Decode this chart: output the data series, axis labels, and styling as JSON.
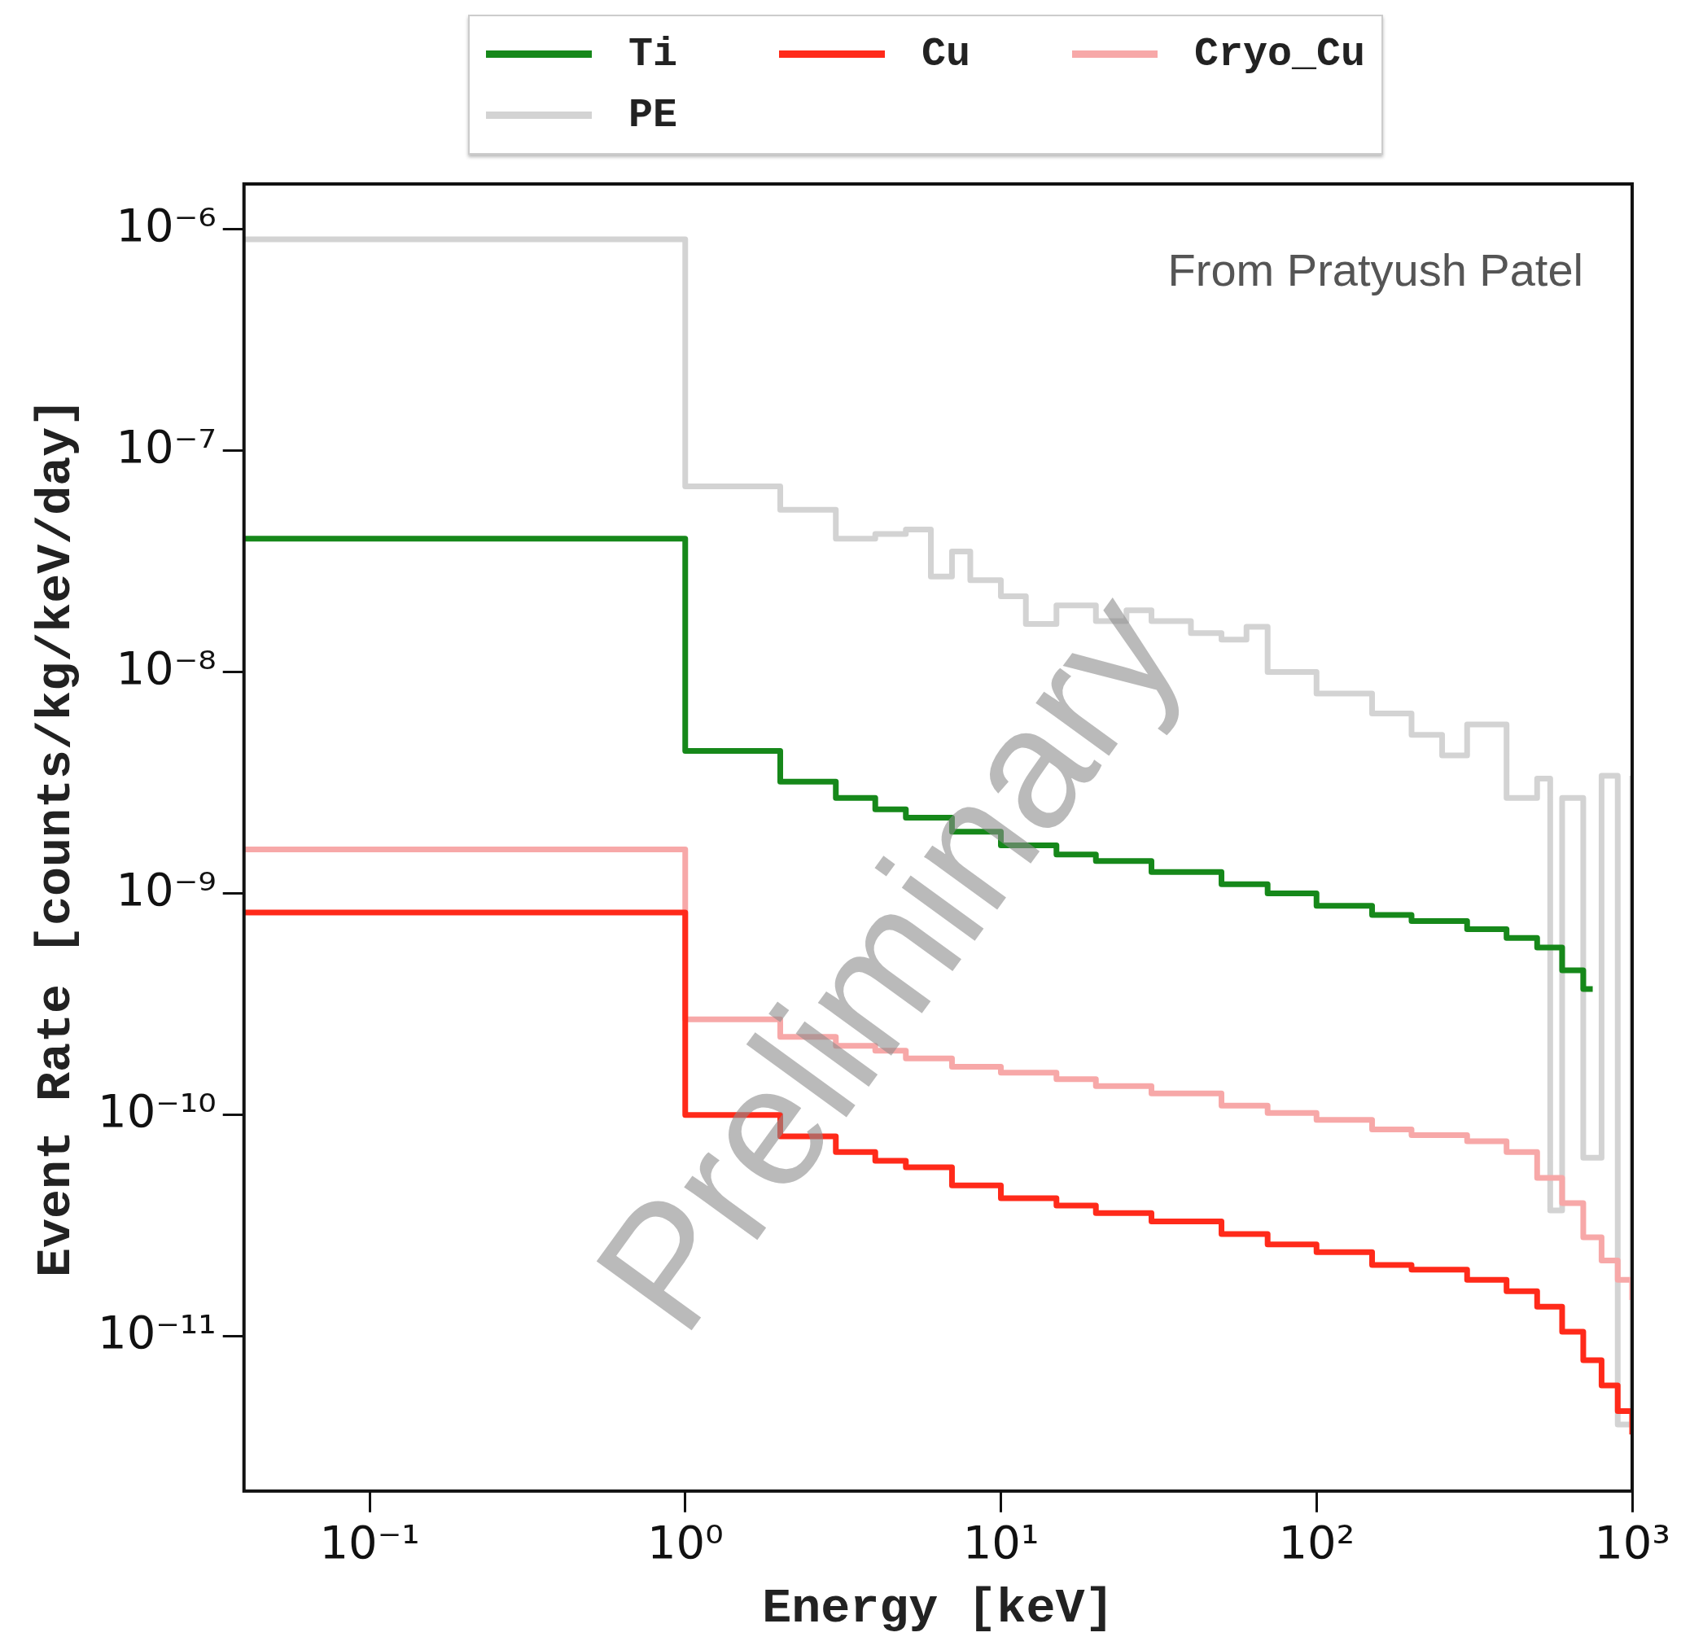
{
  "chart_data": {
    "type": "step",
    "xlabel": "Energy [keV]",
    "ylabel": "Event Rate [counts/kg/keV/day]",
    "log": "xy",
    "grid": false,
    "legend": "top",
    "line_style": "solid",
    "marker": "none",
    "xlim": [
      0.04,
      1000
    ],
    "ylim": [
      2e-12,
      1.6e-06
    ],
    "xticks": [
      {
        "value": 0.1,
        "label": "10⁻¹"
      },
      {
        "value": 1,
        "label": "10⁰"
      },
      {
        "value": 10,
        "label": "10¹"
      },
      {
        "value": 100,
        "label": "10²"
      },
      {
        "value": 1000,
        "label": "10³"
      }
    ],
    "yticks": [
      {
        "value": 1e-11,
        "label": "10⁻¹¹"
      },
      {
        "value": 1e-10,
        "label": "10⁻¹⁰"
      },
      {
        "value": 1e-09,
        "label": "10⁻⁹"
      },
      {
        "value": 1e-08,
        "label": "10⁻⁸"
      },
      {
        "value": 1e-07,
        "label": "10⁻⁷"
      },
      {
        "value": 1e-06,
        "label": "10⁻⁶"
      }
    ],
    "annotations": [
      "From Pratyush Patel",
      "Preliminary"
    ],
    "series": [
      {
        "name": "Ti",
        "color": "#16881a",
        "x": [
          0.04,
          1,
          2,
          3,
          4,
          5,
          7,
          10,
          15,
          20,
          30,
          50,
          70,
          100,
          150,
          200,
          300,
          400,
          500,
          600,
          700,
          750
        ],
        "values": [
          4e-08,
          4.4e-09,
          3.2e-09,
          2.7e-09,
          2.4e-09,
          2.2e-09,
          1.9e-09,
          1.65e-09,
          1.5e-09,
          1.4e-09,
          1.25e-09,
          1.1e-09,
          1e-09,
          8.8e-10,
          8e-10,
          7.5e-10,
          6.9e-10,
          6.3e-10,
          5.7e-10,
          4.5e-10,
          3.7e-10,
          3.7e-10
        ]
      },
      {
        "name": "Cu",
        "color": "#ff2a1a",
        "x": [
          0.04,
          1,
          2,
          3,
          4,
          5,
          7,
          10,
          15,
          20,
          30,
          50,
          70,
          100,
          150,
          200,
          300,
          400,
          500,
          600,
          700,
          800,
          900,
          1000
        ],
        "values": [
          8.2e-10,
          1e-10,
          8e-11,
          6.8e-11,
          6.2e-11,
          5.8e-11,
          4.8e-11,
          4.2e-11,
          3.9e-11,
          3.6e-11,
          3.3e-11,
          2.9e-11,
          2.6e-11,
          2.4e-11,
          2.1e-11,
          2e-11,
          1.8e-11,
          1.6e-11,
          1.36e-11,
          1.05e-11,
          7.8e-12,
          6e-12,
          4.6e-12,
          3.6e-12
        ]
      },
      {
        "name": "Cryo_Cu",
        "color": "#f7a8a8",
        "x": [
          0.04,
          1,
          2,
          3,
          4,
          5,
          7,
          10,
          15,
          20,
          30,
          50,
          70,
          100,
          150,
          200,
          300,
          400,
          500,
          600,
          700,
          800,
          900,
          1000
        ],
        "values": [
          1.58e-09,
          2.7e-10,
          2.25e-10,
          2.05e-10,
          1.95e-10,
          1.8e-10,
          1.65e-10,
          1.55e-10,
          1.45e-10,
          1.35e-10,
          1.25e-10,
          1.1e-10,
          1.02e-10,
          9.5e-11,
          8.6e-11,
          8.1e-11,
          7.6e-11,
          6.8e-11,
          5.2e-11,
          4e-11,
          2.8e-11,
          2.2e-11,
          1.8e-11,
          1.46e-11
        ]
      },
      {
        "name": "PE",
        "color": "#d3d3d3",
        "x": [
          0.04,
          1,
          2,
          3,
          4,
          5,
          6,
          7,
          8,
          10,
          12,
          15,
          20,
          25,
          30,
          40,
          50,
          60,
          70,
          100,
          150,
          200,
          250,
          300,
          400,
          500,
          550,
          600,
          700,
          800,
          900,
          1000
        ],
        "values": [
          9e-07,
          6.9e-08,
          5.4e-08,
          4e-08,
          4.2e-08,
          4.4e-08,
          2.7e-08,
          3.5e-08,
          2.6e-08,
          2.2e-08,
          1.65e-08,
          2e-08,
          1.7e-08,
          1.9e-08,
          1.7e-08,
          1.5e-08,
          1.4e-08,
          1.6e-08,
          1e-08,
          8e-09,
          6.5e-09,
          5.2e-09,
          4.2e-09,
          5.8e-09,
          2.7e-09,
          3.3e-09,
          3.7e-11,
          2.7e-09,
          6.4e-11,
          3.4e-09,
          4e-12,
          3.4e-09
        ]
      }
    ]
  }
}
